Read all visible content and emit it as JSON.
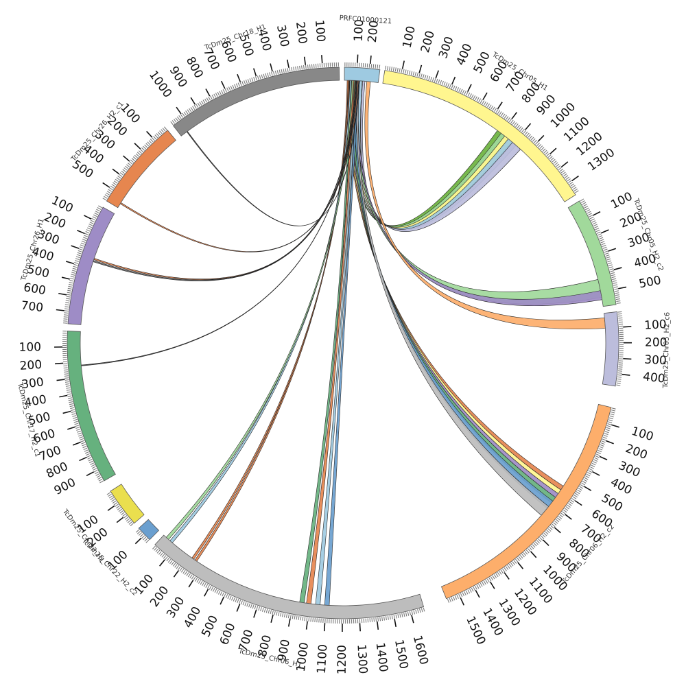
{
  "diagram": {
    "type": "circos",
    "segments": [
      {
        "id": "prfc",
        "label": "PRFC01000121",
        "color": "#9ecae1",
        "ticks": [
          "100",
          "200"
        ]
      },
      {
        "id": "chr05_h1",
        "label": "TcDm25_Chr05_H1",
        "color": "#fff68f",
        "ticks": [
          "100",
          "200",
          "300",
          "400",
          "500",
          "600",
          "700",
          "800",
          "900",
          "1000",
          "1100",
          "1200",
          "1300"
        ]
      },
      {
        "id": "chr05_h2_c2",
        "label": "TcDm25_Chr05_H2_c2",
        "color": "#a1d99b",
        "ticks": [
          "100",
          "200",
          "300",
          "400",
          "500"
        ]
      },
      {
        "id": "chr05_h2_c6",
        "label": "TcDm25_Chr05_H2_c6",
        "color": "#bcbddc",
        "ticks": [
          "100",
          "200",
          "300",
          "400"
        ]
      },
      {
        "id": "chr06_h2_c2",
        "label": "TcDm25_Chr06_H2_c2",
        "color": "#fdae6b",
        "ticks": [
          "100",
          "200",
          "300",
          "400",
          "500",
          "600",
          "700",
          "800",
          "900",
          "1000",
          "1100",
          "1200",
          "1300",
          "1400",
          "1500"
        ]
      },
      {
        "id": "chr06_h1",
        "label": "TcDm25_Chr06_H1",
        "color": "#bdbdbd",
        "ticks": [
          "100",
          "200",
          "300",
          "400",
          "500",
          "600",
          "700",
          "800",
          "900",
          "1000",
          "1100",
          "1200",
          "1300",
          "1400",
          "1500",
          "1600"
        ]
      },
      {
        "id": "chr22_h2_c2",
        "label": "TcDm25_Chr22_H2_c2",
        "color": "#6a9fcf",
        "ticks": [
          "100"
        ]
      },
      {
        "id": "chr22_h1",
        "label": "TcDm25_Chr22_H1",
        "color": "#eadf4e",
        "ticks": [
          "100",
          "200"
        ]
      },
      {
        "id": "chr17_h2_c1",
        "label": "TcDm25_Chr17_H2_c1",
        "color": "#66b17e",
        "ticks": [
          "100",
          "200",
          "300",
          "400",
          "500",
          "600",
          "700",
          "800",
          "900"
        ]
      },
      {
        "id": "chr26_h1",
        "label": "TcDm25_Chr26_H1",
        "color": "#9e8cc6",
        "ticks": [
          "100",
          "200",
          "300",
          "400",
          "500",
          "600",
          "700"
        ]
      },
      {
        "id": "chr26_h2_c1",
        "label": "TcDm25_Chr26_H2_c1",
        "color": "#e6864f",
        "ticks": [
          "100",
          "200",
          "300",
          "400",
          "500"
        ]
      },
      {
        "id": "chr18_h1",
        "label": "TcDm25_Chr18_H1",
        "color": "#888888",
        "ticks": [
          "100",
          "200",
          "300",
          "400",
          "500",
          "600",
          "700",
          "800",
          "900",
          "1000"
        ]
      }
    ],
    "links": [
      {
        "from": "prfc",
        "to": "chr05_h1",
        "color": "#6cb33f"
      },
      {
        "from": "prfc",
        "to": "chr05_h1",
        "color": "#a1d99b"
      },
      {
        "from": "prfc",
        "to": "chr05_h1",
        "color": "#fff68f"
      },
      {
        "from": "prfc",
        "to": "chr05_h1",
        "color": "#9ecae1"
      },
      {
        "from": "prfc",
        "to": "chr05_h1",
        "color": "#bcbddc"
      },
      {
        "from": "prfc",
        "to": "chr05_h2_c2",
        "color": "#a1d99b"
      },
      {
        "from": "prfc",
        "to": "chr05_h2_c2",
        "color": "#9e8cc6"
      },
      {
        "from": "prfc",
        "to": "chr05_h2_c6",
        "color": "#fdae6b"
      },
      {
        "from": "prfc",
        "to": "chr06_h2_c2",
        "color": "#e6864f"
      },
      {
        "from": "prfc",
        "to": "chr06_h2_c2",
        "color": "#fff68f"
      },
      {
        "from": "prfc",
        "to": "chr06_h2_c2",
        "color": "#9e8cc6"
      },
      {
        "from": "prfc",
        "to": "chr06_h2_c2",
        "color": "#66b17e"
      },
      {
        "from": "prfc",
        "to": "chr06_h2_c2",
        "color": "#6a9fcf"
      },
      {
        "from": "prfc",
        "to": "chr06_h2_c2",
        "color": "#bdbdbd"
      },
      {
        "from": "prfc",
        "to": "chr06_h1",
        "color": "#66b17e"
      },
      {
        "from": "prfc",
        "to": "chr06_h1",
        "color": "#e6864f"
      },
      {
        "from": "prfc",
        "to": "chr06_h1",
        "color": "#9ecae1"
      },
      {
        "from": "prfc",
        "to": "chr06_h1",
        "color": "#6a9fcf"
      },
      {
        "from": "prfc",
        "to": "chr22_h2_c2",
        "color": "#e6864f"
      },
      {
        "from": "prfc",
        "to": "chr22_h2_c2",
        "color": "#e6864f"
      },
      {
        "from": "prfc",
        "to": "chr22_h1",
        "color": "#9ecae1"
      },
      {
        "from": "prfc",
        "to": "chr22_h1",
        "color": "#a1d99b"
      },
      {
        "from": "prfc",
        "to": "chr17_h2_c1",
        "color": "#e6864f"
      },
      {
        "from": "prfc",
        "to": "chr17_h2_c1",
        "color": "#444444"
      },
      {
        "from": "prfc",
        "to": "chr26_h1",
        "color": "#666666"
      },
      {
        "from": "prfc",
        "to": "chr26_h2_c1",
        "color": "#e6864f"
      },
      {
        "from": "prfc",
        "to": "chr18_h1",
        "color": "#444444"
      }
    ]
  }
}
